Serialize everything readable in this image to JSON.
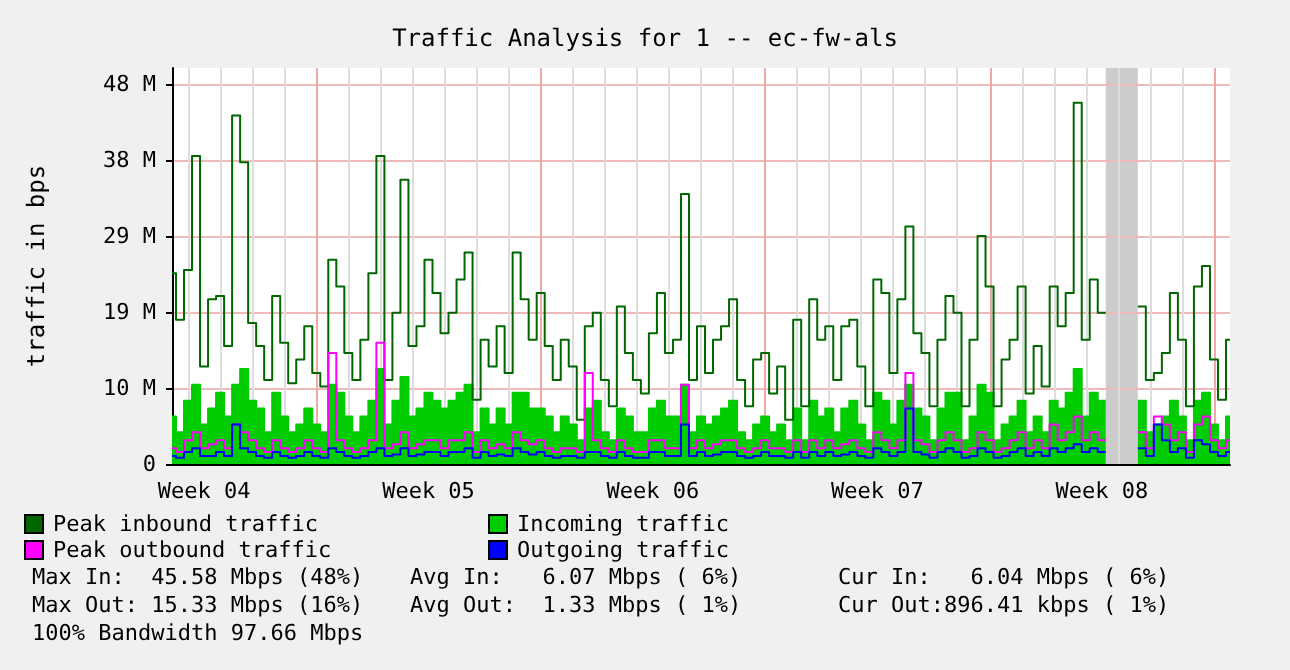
{
  "chart_data": {
    "type": "step",
    "title": "Traffic Analysis for 1 -- ec-fw-als",
    "ylabel": "traffic in bps",
    "categories": [
      null,
      null,
      null,
      null,
      "Week 04",
      null,
      null,
      null,
      null,
      null,
      null,
      null,
      null,
      null,
      null,
      null,
      null,
      null,
      null,
      null,
      null,
      null,
      null,
      null,
      null,
      null,
      null,
      null,
      null,
      null,
      null,
      null,
      "Week 05",
      null,
      null,
      null,
      null,
      null,
      null,
      null,
      null,
      null,
      null,
      null,
      null,
      null,
      null,
      null,
      null,
      null,
      null,
      null,
      null,
      null,
      null,
      null,
      null,
      null,
      null,
      null,
      "Week 06",
      null,
      null,
      null,
      null,
      null,
      null,
      null,
      null,
      null,
      null,
      null,
      null,
      null,
      null,
      null,
      null,
      null,
      null,
      null,
      null,
      null,
      null,
      null,
      null,
      null,
      null,
      null,
      "Week 07",
      null,
      null,
      null,
      null,
      null,
      null,
      null,
      null,
      null,
      null,
      null,
      null,
      null,
      null,
      null,
      null,
      null,
      null,
      null,
      null,
      null,
      null,
      null,
      null,
      null,
      null,
      null,
      "Week 08",
      null,
      null,
      null,
      null,
      null,
      null,
      null,
      null,
      null,
      null,
      null,
      null,
      null,
      null,
      null,
      null
    ],
    "series": [
      {
        "name": "Peak inbound traffic",
        "color": "#006600",
        "values": [
          24.1,
          18.2,
          24.5,
          38.9,
          12.3,
          20.8,
          21.2,
          14.9,
          44,
          38.1,
          17.8,
          14.9,
          10.6,
          21.2,
          15.3,
          10.2,
          13.2,
          17.4,
          11.5,
          9.8,
          25.8,
          22.4,
          14.0,
          10.6,
          15.7,
          24.1,
          38.9,
          10.6,
          19.1,
          35.9,
          14.9,
          17.4,
          25.8,
          21.6,
          16.5,
          19.1,
          23.3,
          26.7,
          8.1,
          15.7,
          12.3,
          17.4,
          11.5,
          26.7,
          20.8,
          15.7,
          21.6,
          14.9,
          10.6,
          15.7,
          12.3,
          5.6,
          17.4,
          19.1,
          10.6,
          7.3,
          19.9,
          14.0,
          10.6,
          8.9,
          16.5,
          21.6,
          14.0,
          15.7,
          34.1,
          10.6,
          17.4,
          11.5,
          15.7,
          17.4,
          20.8,
          10.6,
          7.3,
          13.2,
          14.0,
          8.9,
          12.3,
          5.6,
          18.2,
          7.3,
          20.8,
          15.7,
          17.4,
          10.6,
          17.4,
          18.2,
          12.3,
          7.3,
          23.3,
          21.6,
          11.5,
          20.8,
          30,
          16.5,
          14.0,
          7.3,
          15.7,
          21.2,
          19.1,
          7.3,
          15.7,
          28.8,
          22.4,
          7.3,
          13.2,
          15.7,
          22.4,
          8.9,
          14.9,
          9.8,
          22.4,
          17.4,
          21.6,
          45.6,
          15.7,
          23.3,
          19.1,
          null,
          null,
          null,
          null,
          19.9,
          10.6,
          11.5,
          14.0,
          21.6,
          15.7,
          7.3,
          22.4,
          25,
          13.2,
          8.1,
          15.7
        ]
      },
      {
        "name": "Incoming traffic",
        "type": "area",
        "color": "#00cc00",
        "values": [
          6,
          4,
          8,
          10,
          5,
          7,
          9,
          6,
          10,
          12,
          8,
          7,
          4,
          9,
          6,
          4,
          5,
          7,
          5,
          4,
          10,
          9,
          6,
          4,
          6,
          8,
          12,
          5,
          8,
          11,
          6,
          7,
          9,
          8,
          7,
          8,
          9,
          10,
          4,
          7,
          5,
          7,
          5,
          9,
          9,
          7,
          7,
          6,
          4,
          6,
          5,
          3,
          7,
          8,
          4,
          3,
          7,
          6,
          4,
          4,
          7,
          8,
          6,
          6,
          10,
          4,
          6,
          5,
          6,
          7,
          8,
          4,
          3,
          5,
          6,
          4,
          5,
          3,
          7,
          3,
          8,
          6,
          7,
          4,
          7,
          8,
          5,
          3,
          9,
          8,
          5,
          8,
          10,
          7,
          6,
          3,
          7,
          9,
          9,
          3,
          6,
          10,
          9,
          3,
          5,
          6,
          8,
          4,
          6,
          4,
          8,
          7,
          9,
          12,
          6,
          9,
          8,
          null,
          null,
          null,
          null,
          8,
          4,
          5,
          6,
          8,
          6,
          3,
          8,
          9,
          5,
          3,
          6
        ]
      },
      {
        "name": "Peak outbound traffic",
        "color": "#ff00ff",
        "values": [
          2,
          1.5,
          3,
          4,
          2,
          2.5,
          3,
          2,
          5,
          4,
          3,
          2,
          1.5,
          3,
          2,
          1.5,
          2,
          3,
          2,
          1.5,
          14,
          3,
          2,
          1.5,
          2,
          3,
          15.3,
          2,
          2.5,
          4,
          2,
          2.5,
          3,
          3,
          2,
          3,
          3,
          4,
          1.5,
          3,
          2,
          2.5,
          2,
          4,
          3,
          2.5,
          3,
          2,
          1.5,
          2,
          2,
          1.5,
          11.5,
          3,
          2,
          1.5,
          3,
          2,
          1.5,
          1.5,
          3,
          3,
          2,
          2,
          10,
          2,
          3,
          2,
          2.5,
          3,
          3,
          2,
          1.5,
          2,
          3,
          2,
          2,
          1.5,
          3,
          1.5,
          3,
          2,
          3,
          2,
          2.5,
          3,
          2,
          1.5,
          4,
          3,
          2,
          3,
          11.5,
          3,
          2.5,
          1.5,
          3,
          4,
          3,
          1.5,
          2,
          4,
          3,
          1.5,
          2,
          3,
          4,
          2,
          3,
          2,
          5,
          3,
          4,
          6,
          3,
          4,
          3,
          null,
          null,
          null,
          null,
          4,
          2,
          6,
          5,
          3,
          4,
          1.5,
          5,
          6,
          3,
          2,
          3
        ]
      },
      {
        "name": "Outgoing traffic",
        "color": "#0000ff",
        "values": [
          1,
          0.8,
          1.5,
          2,
          1,
          1,
          1.5,
          1,
          5,
          2,
          1.5,
          1,
          0.8,
          1.5,
          1,
          0.8,
          1,
          1.5,
          1,
          0.8,
          2,
          1.5,
          1,
          0.8,
          1,
          1.5,
          2,
          1,
          1.2,
          2,
          1,
          1.2,
          1.5,
          1.5,
          1,
          1.5,
          1.5,
          2,
          0.8,
          1.5,
          1,
          1.2,
          1,
          2,
          1.5,
          1.2,
          1.5,
          1,
          0.8,
          1,
          1,
          0.8,
          1.5,
          1.5,
          1,
          0.8,
          1.5,
          1,
          0.8,
          0.8,
          1.5,
          1.5,
          1,
          1,
          5,
          1,
          1.5,
          1,
          1.2,
          1.5,
          1.5,
          1,
          0.8,
          1,
          1.5,
          1,
          1,
          0.8,
          1.5,
          0.8,
          1.5,
          1,
          1.5,
          1,
          1.2,
          1.5,
          1,
          0.8,
          2,
          1.5,
          1,
          1.5,
          7,
          1.5,
          1.2,
          0.8,
          1.5,
          2,
          1.5,
          0.8,
          1,
          2,
          1.5,
          0.8,
          1,
          1.5,
          2,
          1,
          1.5,
          1,
          2,
          1.5,
          2,
          2.5,
          1.5,
          2,
          1.5,
          null,
          null,
          null,
          null,
          2,
          1,
          5,
          3,
          1.5,
          2,
          0.8,
          3,
          2.5,
          1.5,
          1,
          1.5
        ]
      }
    ],
    "ylim": [
      0,
      50
    ],
    "yticks": [
      {
        "value": 0,
        "label": "0"
      },
      {
        "value": 9.6,
        "label": "10 M"
      },
      {
        "value": 19.2,
        "label": "19 M"
      },
      {
        "value": 28.8,
        "label": "29 M"
      },
      {
        "value": 38.4,
        "label": "38 M"
      },
      {
        "value": 48,
        "label": "48 M"
      }
    ],
    "grid": true,
    "legend": "bottom",
    "annotations": [
      "Max In:  45.58 Mbps (48%)",
      "Avg In:   6.07 Mbps ( 6%)",
      "Cur In:   6.04 Mbps ( 6%)",
      "Max Out: 15.33 Mbps (16%)",
      "Avg Out:  1.33 Mbps ( 1%)",
      "Cur Out:896.41 kbps ( 1%)",
      "100% Bandwidth 97.66 Mbps"
    ]
  }
}
